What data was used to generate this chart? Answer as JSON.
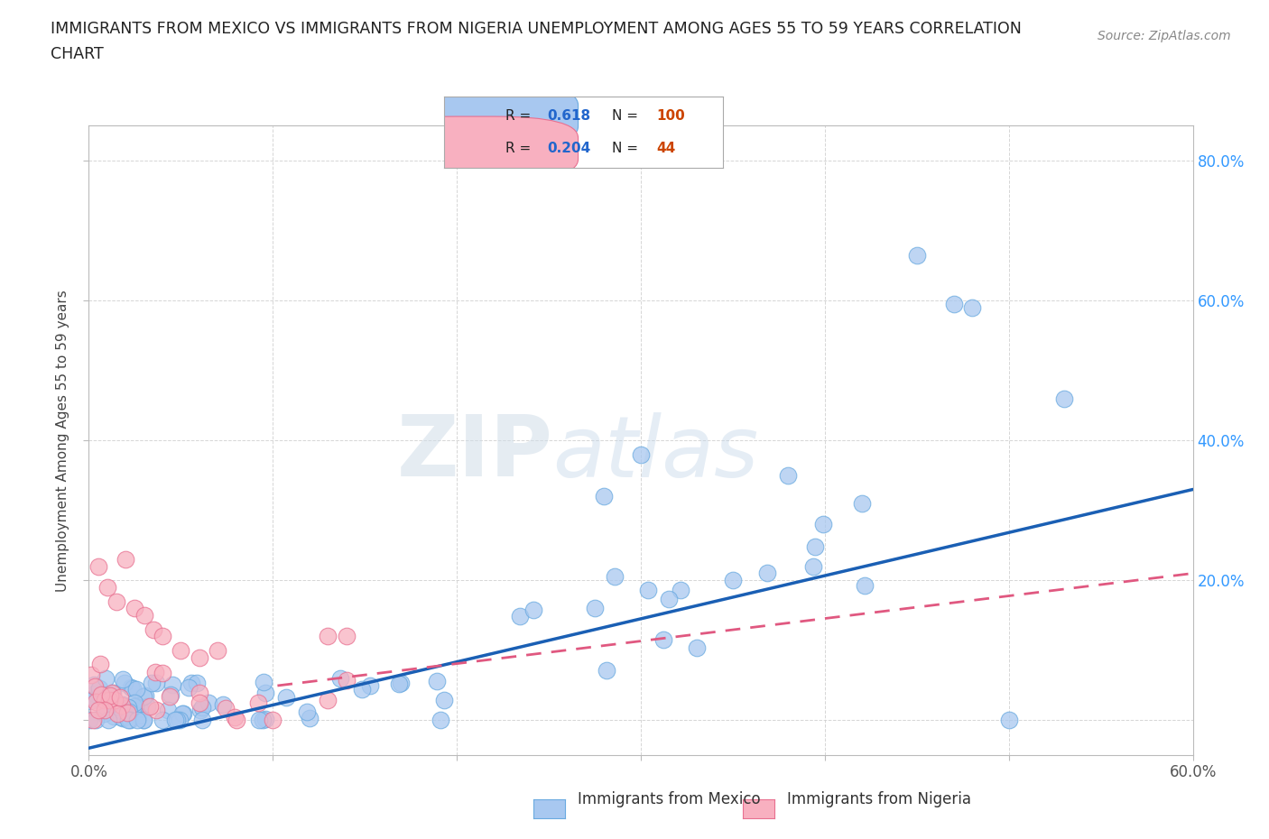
{
  "title_line1": "IMMIGRANTS FROM MEXICO VS IMMIGRANTS FROM NIGERIA UNEMPLOYMENT AMONG AGES 55 TO 59 YEARS CORRELATION",
  "title_line2": "CHART",
  "source": "Source: ZipAtlas.com",
  "ylabel": "Unemployment Among Ages 55 to 59 years",
  "xlim": [
    0.0,
    0.6
  ],
  "ylim": [
    -0.05,
    0.85
  ],
  "xticks": [
    0.0,
    0.1,
    0.2,
    0.3,
    0.4,
    0.5,
    0.6
  ],
  "xticklabels": [
    "0.0%",
    "",
    "",
    "",
    "",
    "",
    "60.0%"
  ],
  "yticks": [
    0.0,
    0.2,
    0.4,
    0.6,
    0.8
  ],
  "yticklabels": [
    "",
    "20.0%",
    "40.0%",
    "60.0%",
    "80.0%"
  ],
  "mexico_color": "#a8c8f0",
  "mexico_edge": "#6aaae0",
  "nigeria_color": "#f8b0c0",
  "nigeria_edge": "#e87090",
  "mexico_line_color": "#1a5fb4",
  "nigeria_line_color": "#e05880",
  "R_mexico": 0.618,
  "N_mexico": 100,
  "R_nigeria": 0.204,
  "N_nigeria": 44,
  "watermark_zip": "ZIP",
  "watermark_atlas": "atlas",
  "legend_label_mexico": "Immigrants from Mexico",
  "legend_label_nigeria": "Immigrants from Nigeria",
  "grid_color": "#cccccc",
  "background_color": "#ffffff",
  "mexico_trend_x0": 0.0,
  "mexico_trend_y0": -0.04,
  "mexico_trend_x1": 0.6,
  "mexico_trend_y1": 0.33,
  "nigeria_trend_x0": 0.12,
  "nigeria_trend_y0": 0.055,
  "nigeria_trend_x1": 0.6,
  "nigeria_trend_y1": 0.21
}
